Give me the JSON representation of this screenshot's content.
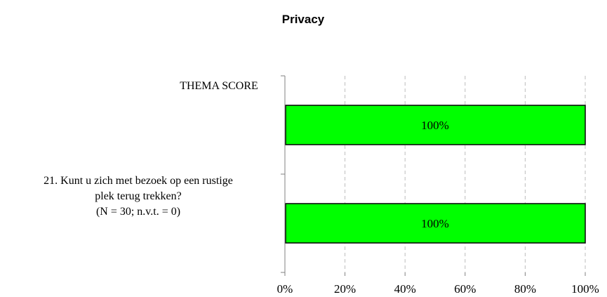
{
  "chart_data": {
    "type": "bar",
    "orientation": "horizontal",
    "title": "Privacy",
    "categories": [
      [
        "THEMA SCORE"
      ],
      [
        "21. Kunt u zich met bezoek op een rustige",
        "plek terug trekken?",
        "(N = 30; n.v.t. = 0)"
      ]
    ],
    "values": [
      100,
      100
    ],
    "data_labels": [
      "100%",
      "100%"
    ],
    "xlim": [
      0,
      100
    ],
    "xticks": [
      "0%",
      "20%",
      "40%",
      "60%",
      "80%",
      "100%"
    ],
    "grid": "vertical-dashed",
    "bar_color": "#00ff00",
    "bar_stroke": "#000000",
    "legend": "none"
  }
}
